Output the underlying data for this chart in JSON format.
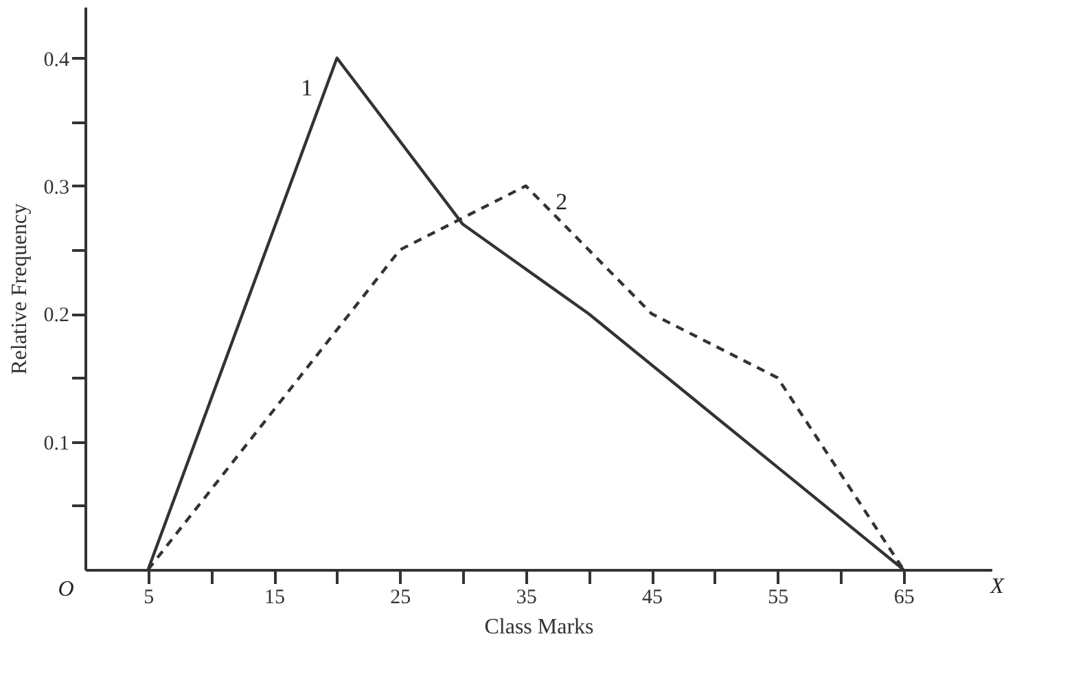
{
  "chart_data": {
    "type": "line",
    "xlabel": "Class Marks",
    "ylabel": "Relative Frequency",
    "xlim": [
      0,
      72
    ],
    "ylim": [
      0,
      0.44
    ],
    "xticks": [
      5,
      {
        "value": 10,
        "label": null
      },
      15,
      {
        "value": 20,
        "label": null
      },
      25,
      {
        "value": 30,
        "label": null
      },
      35,
      {
        "value": 40,
        "label": null
      },
      45,
      {
        "value": 50,
        "label": null
      },
      55,
      {
        "value": 60,
        "label": null
      },
      65
    ],
    "yticks": [
      {
        "value": 0.05,
        "label": null
      },
      0.1,
      {
        "value": 0.15,
        "label": null
      },
      0.2,
      {
        "value": 0.25,
        "label": null
      },
      0.3,
      {
        "value": 0.35,
        "label": null
      },
      0.4
    ],
    "grid": false,
    "marker": "none",
    "series": [
      {
        "name": "1",
        "color": "#333333",
        "line_style": "solid",
        "x": [
          5,
          20,
          30,
          40,
          55,
          65
        ],
        "values": [
          0,
          0.4,
          0.27,
          0.2,
          0.08,
          0
        ]
      },
      {
        "name": "2",
        "color": "#333333",
        "line_style": "dashed",
        "x": [
          5,
          25,
          35,
          45,
          55,
          65
        ],
        "values": [
          0,
          0.25,
          0.3,
          0.2,
          0.15,
          0
        ]
      }
    ],
    "annotations": [
      "O",
      "X"
    ]
  }
}
